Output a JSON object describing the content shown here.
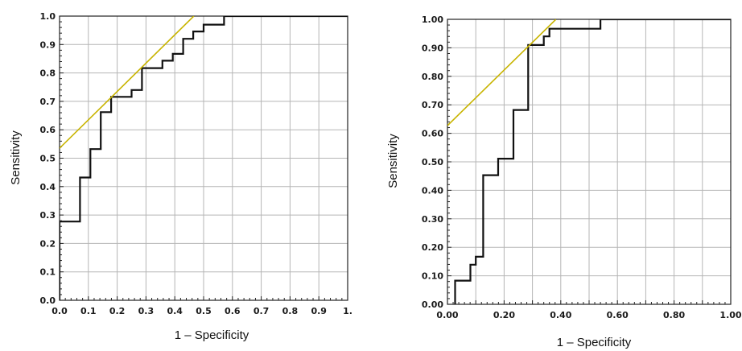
{
  "chart_data": [
    {
      "type": "line",
      "xlabel": "1 – Specificity",
      "ylabel": "Sensitivity",
      "xlim": [
        0,
        1
      ],
      "ylim": [
        0,
        1
      ],
      "grid": true,
      "x_ticks": [
        "0.0",
        "0.1",
        "0.2",
        "0.3",
        "0.4",
        "0.5",
        "0.6",
        "0.7",
        "0.8",
        "0.9",
        "1."
      ],
      "x_tick_values": [
        0,
        0.1,
        0.2,
        0.3,
        0.4,
        0.5,
        0.6,
        0.7,
        0.8,
        0.9,
        1.0
      ],
      "y_ticks": [
        "0.0",
        "0.1",
        "0.2",
        "0.3",
        "0.4",
        "0.5",
        "0.6",
        "0.7",
        "0.8",
        "0.9",
        "1.0"
      ],
      "y_tick_values": [
        0,
        0.1,
        0.2,
        0.3,
        0.4,
        0.5,
        0.6,
        0.7,
        0.8,
        0.9,
        1.0
      ],
      "series": [
        {
          "kind": "step",
          "color": "#111111",
          "points": [
            [
              0,
              0
            ],
            [
              0,
              0.277
            ],
            [
              0.071,
              0.277
            ],
            [
              0.071,
              0.432
            ],
            [
              0.107,
              0.432
            ],
            [
              0.107,
              0.532
            ],
            [
              0.143,
              0.532
            ],
            [
              0.143,
              0.662
            ],
            [
              0.179,
              0.662
            ],
            [
              0.179,
              0.716
            ],
            [
              0.25,
              0.716
            ],
            [
              0.25,
              0.74
            ],
            [
              0.286,
              0.74
            ],
            [
              0.286,
              0.817
            ],
            [
              0.357,
              0.817
            ],
            [
              0.357,
              0.843
            ],
            [
              0.393,
              0.843
            ],
            [
              0.393,
              0.867
            ],
            [
              0.429,
              0.867
            ],
            [
              0.429,
              0.92
            ],
            [
              0.464,
              0.92
            ],
            [
              0.464,
              0.946
            ],
            [
              0.5,
              0.946
            ],
            [
              0.5,
              0.97
            ],
            [
              0.571,
              0.97
            ],
            [
              0.571,
              1.0
            ],
            [
              1.0,
              1.0
            ]
          ]
        },
        {
          "kind": "reference",
          "color": "#c8b400",
          "points": [
            [
              0,
              0.535
            ],
            [
              0.466,
              1.0
            ]
          ]
        }
      ]
    },
    {
      "type": "line",
      "xlabel": "1 – Specificity",
      "ylabel": "Sensitivity",
      "xlim": [
        0,
        1
      ],
      "ylim": [
        0,
        1
      ],
      "grid": true,
      "x_ticks": [
        "0.00",
        "0.20",
        "0.40",
        "0.60",
        "0.80",
        "1.00"
      ],
      "x_tick_values": [
        0,
        0.2,
        0.4,
        0.6,
        0.8,
        1.0
      ],
      "y_ticks": [
        "0.00",
        "0.10",
        "0.20",
        "0.30",
        "0.40",
        "0.50",
        "0.60",
        "0.70",
        "0.80",
        "0.90",
        "1.00"
      ],
      "y_tick_values": [
        0,
        0.1,
        0.2,
        0.3,
        0.4,
        0.5,
        0.6,
        0.7,
        0.8,
        0.9,
        1.0
      ],
      "series": [
        {
          "kind": "step",
          "color": "#111111",
          "points": [
            [
              0.027,
              0
            ],
            [
              0.027,
              0.083
            ],
            [
              0.081,
              0.083
            ],
            [
              0.081,
              0.139
            ],
            [
              0.1,
              0.139
            ],
            [
              0.1,
              0.167
            ],
            [
              0.126,
              0.167
            ],
            [
              0.126,
              0.453
            ],
            [
              0.179,
              0.453
            ],
            [
              0.179,
              0.511
            ],
            [
              0.233,
              0.511
            ],
            [
              0.233,
              0.682
            ],
            [
              0.285,
              0.682
            ],
            [
              0.285,
              0.91
            ],
            [
              0.34,
              0.91
            ],
            [
              0.34,
              0.94
            ],
            [
              0.36,
              0.94
            ],
            [
              0.36,
              0.967
            ],
            [
              0.54,
              0.967
            ],
            [
              0.54,
              1.0
            ],
            [
              1.0,
              1.0
            ]
          ]
        },
        {
          "kind": "reference",
          "color": "#c8b400",
          "points": [
            [
              0,
              0.627
            ],
            [
              0.383,
              1.0
            ]
          ]
        }
      ]
    }
  ]
}
